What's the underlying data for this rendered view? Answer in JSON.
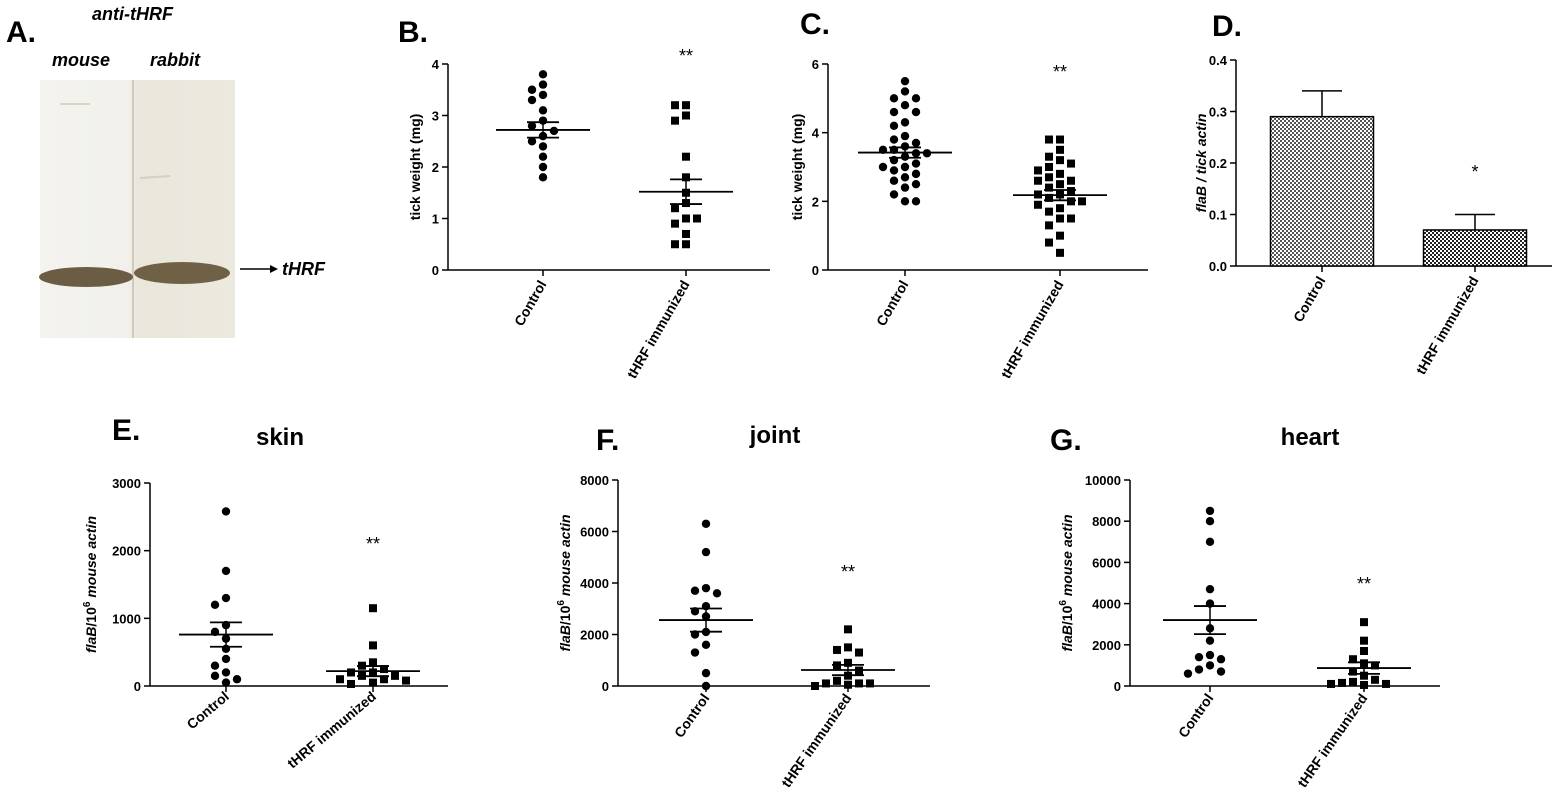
{
  "panel_a": {
    "letter": "A.",
    "title": "anti-tHRF",
    "lane_left": "mouse",
    "lane_right": "rabbit",
    "band_label": "tHRF"
  },
  "chart_data": [
    {
      "id": "B",
      "letter": "B.",
      "type": "scatter",
      "title": "",
      "xlabel": "",
      "ylabel": "tick weight (mg)",
      "categories": [
        "Control",
        "tHRF immunized"
      ],
      "ylim": [
        0,
        4
      ],
      "yticks": [
        0,
        1,
        2,
        3,
        4
      ],
      "series": [
        {
          "values": [
            3.8,
            3.6,
            3.5,
            3.4,
            3.3,
            3.1,
            2.9,
            2.8,
            2.6,
            2.5,
            2.4,
            2.2,
            2.0,
            1.8,
            2.7
          ]
        },
        {
          "values": [
            3.2,
            3.2,
            3.0,
            2.9,
            2.2,
            1.8,
            1.5,
            1.3,
            1.2,
            1.0,
            0.9,
            0.7,
            0.5,
            0.5,
            1.0
          ]
        }
      ],
      "mean_sem": [
        [
          2.72,
          0.15
        ],
        [
          1.52,
          0.24
        ]
      ],
      "significance": "**",
      "grid": false
    },
    {
      "id": "C",
      "letter": "C.",
      "type": "scatter",
      "title": "",
      "xlabel": "",
      "ylabel": "tick weight (mg)",
      "categories": [
        "Control",
        "tHRF immunized"
      ],
      "ylim": [
        0,
        6
      ],
      "yticks": [
        0,
        2,
        4,
        6
      ],
      "series": [
        {
          "values": [
            5.5,
            5.2,
            5.0,
            5.0,
            4.8,
            4.6,
            4.6,
            4.3,
            4.2,
            3.9,
            3.8,
            3.7,
            3.6,
            3.5,
            3.5,
            3.4,
            3.4,
            3.3,
            3.2,
            3.1,
            3.0,
            3.0,
            2.9,
            2.8,
            2.7,
            2.6,
            2.5,
            2.4,
            2.2,
            2.0,
            2.0
          ]
        },
        {
          "values": [
            3.8,
            3.8,
            3.5,
            3.3,
            3.2,
            3.1,
            3.0,
            2.8,
            2.7,
            2.6,
            2.5,
            2.4,
            2.3,
            2.2,
            2.2,
            2.1,
            2.0,
            2.0,
            1.8,
            1.7,
            1.5,
            1.5,
            1.3,
            1.0,
            0.8,
            0.5,
            2.6,
            2.9,
            1.9
          ]
        }
      ],
      "mean_sem": [
        [
          3.42,
          0.15
        ],
        [
          2.18,
          0.15
        ]
      ],
      "significance": "**",
      "grid": false
    },
    {
      "id": "D",
      "letter": "D.",
      "type": "bar",
      "title": "",
      "xlabel": "",
      "ylabel": "flaB / tick actin",
      "categories": [
        "Control",
        "tHRF immunized"
      ],
      "values": [
        0.29,
        0.07
      ],
      "errors": [
        0.05,
        0.03
      ],
      "ylim": [
        0,
        0.4
      ],
      "yticks": [
        "0.0",
        "0.1",
        "0.2",
        "0.3",
        "0.4"
      ],
      "significance": "*",
      "grid": false
    },
    {
      "id": "E",
      "letter": "E.",
      "type": "scatter",
      "title": "skin",
      "xlabel": "",
      "ylabel": "flaB/10^6 mouse actin",
      "ylabel_parts": [
        "flaB",
        "/10",
        "6",
        " mouse actin"
      ],
      "categories": [
        "Control",
        "tHRF immunized"
      ],
      "ylim": [
        0,
        3000
      ],
      "yticks": [
        0,
        1000,
        2000,
        3000
      ],
      "series": [
        {
          "values": [
            2580,
            1700,
            1300,
            1200,
            900,
            800,
            700,
            550,
            400,
            300,
            200,
            150,
            100,
            50
          ]
        },
        {
          "values": [
            1150,
            600,
            350,
            300,
            250,
            200,
            200,
            150,
            150,
            100,
            100,
            80,
            50,
            30
          ]
        }
      ],
      "mean_sem": [
        [
          760,
          180
        ],
        [
          220,
          75
        ]
      ],
      "significance": "**",
      "grid": false
    },
    {
      "id": "F",
      "letter": "F.",
      "type": "scatter",
      "title": "joint",
      "xlabel": "",
      "ylabel": "flaB/10^6 mouse actin",
      "ylabel_parts": [
        "flaB",
        "/10",
        "6",
        " mouse actin"
      ],
      "categories": [
        "Control",
        "tHRF immunized"
      ],
      "ylim": [
        0,
        8000
      ],
      "yticks": [
        0,
        2000,
        4000,
        6000,
        8000
      ],
      "series": [
        {
          "values": [
            6300,
            5200,
            3800,
            3700,
            3600,
            3100,
            2900,
            2700,
            2100,
            2000,
            1600,
            1300,
            500,
            0
          ]
        },
        {
          "values": [
            2200,
            1500,
            1400,
            1300,
            900,
            800,
            600,
            400,
            200,
            100,
            100,
            100,
            50,
            0
          ]
        }
      ],
      "mean_sem": [
        [
          2560,
          450
        ],
        [
          620,
          200
        ]
      ],
      "significance": "**",
      "grid": false
    },
    {
      "id": "G",
      "letter": "G.",
      "type": "scatter",
      "title": "heart",
      "xlabel": "",
      "ylabel": "flaB/10^6 mouse actin",
      "ylabel_parts": [
        "flaB",
        "/10",
        "6",
        " mouse actin"
      ],
      "categories": [
        "Control",
        "tHRF immunized"
      ],
      "ylim": [
        0,
        10000
      ],
      "yticks": [
        0,
        2000,
        4000,
        6000,
        8000,
        10000
      ],
      "series": [
        {
          "values": [
            8500,
            8000,
            7000,
            4700,
            4000,
            2800,
            2200,
            1500,
            1400,
            1300,
            1000,
            800,
            700,
            600
          ]
        },
        {
          "values": [
            3100,
            2200,
            1700,
            1300,
            1100,
            1000,
            700,
            500,
            300,
            200,
            150,
            100,
            100,
            50
          ]
        }
      ],
      "mean_sem": [
        [
          3200,
          680
        ],
        [
          870,
          280
        ]
      ],
      "significance": "**",
      "grid": false
    }
  ]
}
